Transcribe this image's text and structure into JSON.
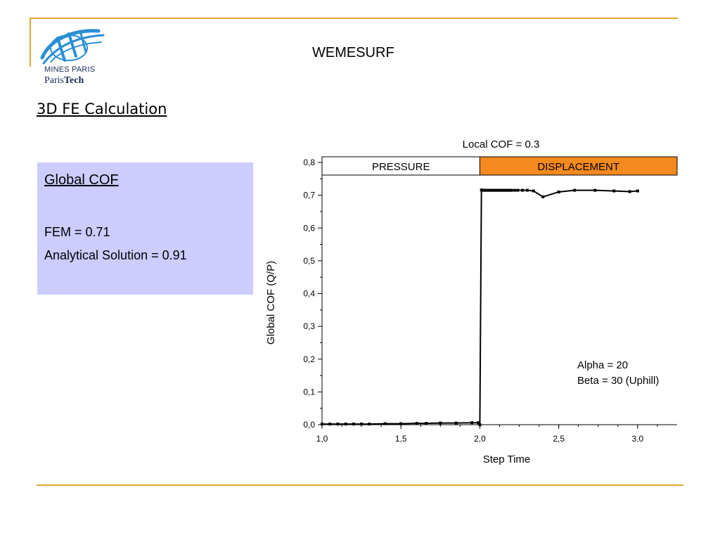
{
  "header": {
    "title": "WEMESURF"
  },
  "logo": {
    "line1": "MINES PARIS",
    "line2a": "Paris",
    "line2b": "Tech"
  },
  "section": {
    "title": "3D FE Calculation"
  },
  "cof_box": {
    "heading": "Global COF",
    "fem": "FEM = 0.71",
    "analytical": "Analytical Solution = 0.91"
  },
  "colors": {
    "accent": "#E0A92E",
    "box": "#CCCCFF",
    "displacement": "#F58A1F",
    "logo": "#2a8fd6"
  },
  "chart_data": {
    "type": "line",
    "title": "Local COF = 0.3",
    "xlabel": "Step Time",
    "ylabel": "Global COF (Q/P)",
    "xlim": [
      1.0,
      3.25
    ],
    "ylim": [
      0.0,
      0.8
    ],
    "xticks": [
      1.0,
      1.5,
      2.0,
      2.5,
      3.0
    ],
    "xtick_labels": [
      "1,0",
      "1,5",
      "2,0",
      "2,5",
      "3,0"
    ],
    "yticks": [
      0.0,
      0.1,
      0.2,
      0.3,
      0.4,
      0.5,
      0.6,
      0.7,
      0.8
    ],
    "ytick_labels": [
      "0,0",
      "0,1",
      "0,2",
      "0,3",
      "0,4",
      "0,5",
      "0,6",
      "0,7",
      "0,8"
    ],
    "phases": [
      {
        "label": "PRESSURE",
        "x_start": 1.0,
        "x_end": 2.0,
        "color": "#ffffff"
      },
      {
        "label": "DISPLACEMENT",
        "x_start": 2.0,
        "x_end": 3.25,
        "color": "#F58A1F"
      }
    ],
    "annotation_lines": [
      "Alpha = 20",
      "Beta = 30 (Uphill)"
    ],
    "series": [
      {
        "x": [
          1.0,
          1.05,
          1.1,
          1.15,
          1.2,
          1.25,
          1.3,
          1.4,
          1.5,
          1.6,
          1.66,
          1.75,
          1.85,
          1.95,
          1.99,
          2.0,
          2.01,
          2.02,
          2.03,
          2.04,
          2.05,
          2.06,
          2.07,
          2.08,
          2.09,
          2.1,
          2.11,
          2.12,
          2.13,
          2.14,
          2.15,
          2.16,
          2.17,
          2.18,
          2.19,
          2.2,
          2.22,
          2.24,
          2.27,
          2.3,
          2.34,
          2.4,
          2.5,
          2.6,
          2.73,
          2.85,
          2.95,
          3.0
        ],
        "y": [
          0.002,
          0.002,
          0.002,
          0.002,
          0.002,
          0.002,
          0.002,
          0.003,
          0.003,
          0.004,
          0.004,
          0.005,
          0.005,
          0.006,
          0.006,
          0.0,
          0.716,
          0.715,
          0.715,
          0.715,
          0.715,
          0.715,
          0.715,
          0.715,
          0.715,
          0.715,
          0.715,
          0.715,
          0.715,
          0.715,
          0.715,
          0.715,
          0.715,
          0.715,
          0.715,
          0.715,
          0.715,
          0.715,
          0.715,
          0.715,
          0.713,
          0.695,
          0.71,
          0.715,
          0.715,
          0.713,
          0.711,
          0.713
        ]
      }
    ]
  }
}
